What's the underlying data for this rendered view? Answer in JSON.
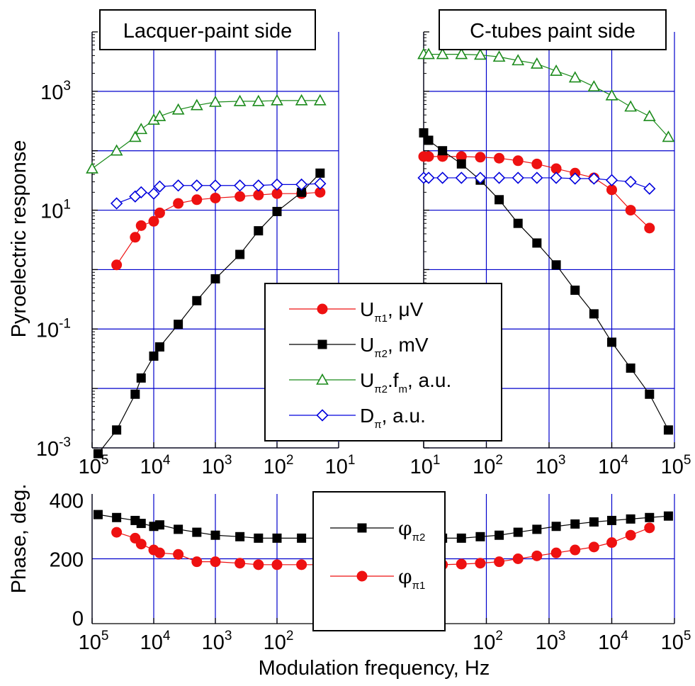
{
  "figure": {
    "xlabel": "Modulation frequency, Hz",
    "ylabel_top": "Pyroelectric response",
    "ylabel_bottom": "Phase, deg."
  },
  "panels": {
    "left_label": "Lacquer-paint side",
    "right_label": "C-tubes paint side"
  },
  "legend_top": [
    {
      "base": "U",
      "sub": "π1",
      "suffix": ", μV",
      "color": "#ee1111",
      "marker": "circle-filled"
    },
    {
      "base": "U",
      "sub": "π2",
      "suffix": ", mV",
      "color": "#000000",
      "marker": "square-filled"
    },
    {
      "base": "U",
      "sub": "π2",
      "suffix": ".f",
      "sub2": "m",
      "suffix2": ", a.u.",
      "color": "#1a8a1a",
      "marker": "triangle-open"
    },
    {
      "base": "D",
      "sub": "π",
      "suffix": ", a.u.",
      "color": "#0000dd",
      "marker": "diamond-open"
    }
  ],
  "legend_bottom": [
    {
      "base": "φ",
      "sub": "π2",
      "color": "#000000",
      "marker": "square-filled"
    },
    {
      "base": "φ",
      "sub": "π1",
      "color": "#ee1111",
      "marker": "circle-filled"
    }
  ],
  "ticks": {
    "left_x": [
      {
        "base": "10",
        "exp": "5"
      },
      {
        "base": "10",
        "exp": "4"
      },
      {
        "base": "10",
        "exp": "3"
      },
      {
        "base": "10",
        "exp": "2"
      },
      {
        "base": "10",
        "exp": "1"
      }
    ],
    "right_x": [
      {
        "base": "10",
        "exp": "1"
      },
      {
        "base": "10",
        "exp": "2"
      },
      {
        "base": "10",
        "exp": "3"
      },
      {
        "base": "10",
        "exp": "4"
      },
      {
        "base": "10",
        "exp": "5"
      }
    ],
    "bottom_left_x": [
      {
        "base": "10",
        "exp": "5"
      },
      {
        "base": "10",
        "exp": "4"
      },
      {
        "base": "10",
        "exp": "3"
      },
      {
        "base": "10",
        "exp": "2"
      }
    ],
    "bottom_right_x": [
      {
        "base": "10",
        "exp": "2"
      },
      {
        "base": "10",
        "exp": "3"
      },
      {
        "base": "10",
        "exp": "4"
      },
      {
        "base": "10",
        "exp": "5"
      }
    ],
    "top_y": [
      {
        "base": "10",
        "exp": "3"
      },
      {
        "base": "10",
        "exp": "1"
      },
      {
        "base": "10",
        "exp": "-1"
      },
      {
        "base": "10",
        "exp": "-3"
      }
    ],
    "bottom_y": [
      "400",
      "200",
      "0"
    ]
  },
  "chart_data": [
    {
      "type": "scatter",
      "panel": "top-left",
      "title": "Lacquer-paint side",
      "x_scale": "log",
      "y_scale": "log",
      "xlim": [
        100000,
        10
      ],
      "ylim": [
        0.001,
        10000
      ],
      "grid": true,
      "series": [
        {
          "name": "Uπ1, μV",
          "color": "#ee1111",
          "marker": "circle-filled",
          "x": [
            40000,
            20000,
            16000,
            10000,
            8000,
            4000,
            2000,
            1000,
            400,
            200,
            100,
            40,
            20
          ],
          "y": [
            1.2,
            3.5,
            5.5,
            6.5,
            9.0,
            13,
            15,
            16,
            17,
            18,
            19,
            19,
            20
          ]
        },
        {
          "name": "Uπ2, mV",
          "color": "#000000",
          "marker": "square-filled",
          "x": [
            80000,
            40000,
            20000,
            16000,
            10000,
            8000,
            4000,
            2000,
            1000,
            400,
            200,
            100,
            40,
            20
          ],
          "y": [
            0.0008,
            0.002,
            0.008,
            0.015,
            0.035,
            0.05,
            0.12,
            0.3,
            0.7,
            1.8,
            4.5,
            9.5,
            20,
            42
          ]
        },
        {
          "name": "Uπ2.fm, a.u.",
          "color": "#1a8a1a",
          "marker": "triangle-open",
          "x": [
            100000,
            40000,
            20000,
            16000,
            10000,
            8000,
            4000,
            2000,
            1000,
            400,
            200,
            100,
            40,
            20
          ],
          "y": [
            50,
            100,
            170,
            230,
            330,
            380,
            490,
            580,
            660,
            680,
            680,
            700,
            700,
            700
          ]
        },
        {
          "name": "Dπ, a.u.",
          "color": "#0000dd",
          "marker": "diamond-open",
          "x": [
            40000,
            20000,
            16000,
            10000,
            8000,
            4000,
            2000,
            1000,
            400,
            200,
            100,
            40,
            20
          ],
          "y": [
            13,
            17,
            20,
            19,
            25,
            26,
            26,
            26,
            26,
            26,
            27,
            27,
            28
          ]
        }
      ]
    },
    {
      "type": "scatter",
      "panel": "top-right",
      "title": "C-tubes paint side",
      "x_scale": "log",
      "y_scale": "log",
      "xlim": [
        10,
        100000
      ],
      "ylim": [
        0.001,
        10000
      ],
      "grid": true,
      "series": [
        {
          "name": "Uπ1, μV",
          "color": "#ee1111",
          "marker": "circle-filled",
          "x": [
            10,
            12,
            20,
            40,
            80,
            160,
            320,
            640,
            1300,
            2600,
            5200,
            10000,
            20000,
            40000
          ],
          "y": [
            80,
            80,
            80,
            80,
            78,
            75,
            68,
            60,
            50,
            42,
            35,
            22,
            10,
            5
          ]
        },
        {
          "name": "Uπ2, mV",
          "color": "#000000",
          "marker": "square-filled",
          "x": [
            10,
            12,
            20,
            40,
            80,
            160,
            320,
            640,
            1300,
            2600,
            5200,
            10000,
            20000,
            40000,
            80000
          ],
          "y": [
            200,
            150,
            100,
            60,
            32,
            15,
            6,
            2.8,
            1.2,
            0.45,
            0.18,
            0.06,
            0.022,
            0.008,
            0.002
          ]
        },
        {
          "name": "Uπ2.fm, a.u.",
          "color": "#1a8a1a",
          "marker": "triangle-open",
          "x": [
            10,
            12,
            20,
            40,
            80,
            160,
            320,
            640,
            1300,
            2600,
            5200,
            10000,
            20000,
            40000,
            80000
          ],
          "y": [
            4200,
            4200,
            4200,
            4200,
            4100,
            3800,
            3300,
            2900,
            2200,
            1700,
            1200,
            850,
            550,
            380,
            170
          ]
        },
        {
          "name": "Dπ, a.u.",
          "color": "#0000dd",
          "marker": "diamond-open",
          "x": [
            10,
            12,
            20,
            40,
            80,
            160,
            320,
            640,
            1300,
            2600,
            5200,
            10000,
            20000,
            40000
          ],
          "y": [
            35,
            35,
            35,
            35,
            35,
            35,
            35,
            35,
            35,
            34,
            34,
            32,
            30,
            23
          ]
        }
      ]
    },
    {
      "type": "scatter",
      "panel": "bottom-left",
      "x_scale": "log",
      "y_scale": "linear",
      "xlim": [
        100000,
        10
      ],
      "ylim": [
        -20,
        420
      ],
      "grid": true,
      "series": [
        {
          "name": "φπ2",
          "color": "#000000",
          "marker": "square-filled",
          "x": [
            80000,
            40000,
            20000,
            16000,
            10000,
            8000,
            4000,
            2000,
            1000,
            400,
            200,
            100,
            40,
            20
          ],
          "y": [
            350,
            340,
            330,
            320,
            310,
            315,
            300,
            290,
            280,
            275,
            270,
            270,
            270,
            270
          ]
        },
        {
          "name": "φπ1",
          "color": "#ee1111",
          "marker": "circle-filled",
          "x": [
            40000,
            20000,
            16000,
            10000,
            8000,
            4000,
            2000,
            1000,
            400,
            200,
            100,
            40,
            20
          ],
          "y": [
            290,
            270,
            250,
            230,
            220,
            215,
            190,
            190,
            185,
            180,
            180,
            180,
            180
          ]
        }
      ]
    },
    {
      "type": "scatter",
      "panel": "bottom-right",
      "x_scale": "log",
      "y_scale": "linear",
      "xlim": [
        10,
        100000
      ],
      "ylim": [
        -20,
        420
      ],
      "grid": true,
      "series": [
        {
          "name": "φπ2",
          "color": "#000000",
          "marker": "square-filled",
          "x": [
            10,
            12,
            20,
            40,
            80,
            160,
            320,
            640,
            1300,
            2600,
            5200,
            10000,
            20000,
            40000,
            80000
          ],
          "y": [
            270,
            270,
            270,
            270,
            275,
            280,
            290,
            300,
            310,
            318,
            325,
            330,
            335,
            340,
            345
          ]
        },
        {
          "name": "φπ1",
          "color": "#ee1111",
          "marker": "circle-filled",
          "x": [
            10,
            12,
            20,
            40,
            80,
            160,
            320,
            640,
            1300,
            2600,
            5200,
            10000,
            20000,
            40000
          ],
          "y": [
            180,
            180,
            180,
            182,
            185,
            190,
            200,
            210,
            220,
            230,
            240,
            255,
            280,
            305
          ]
        }
      ]
    }
  ]
}
